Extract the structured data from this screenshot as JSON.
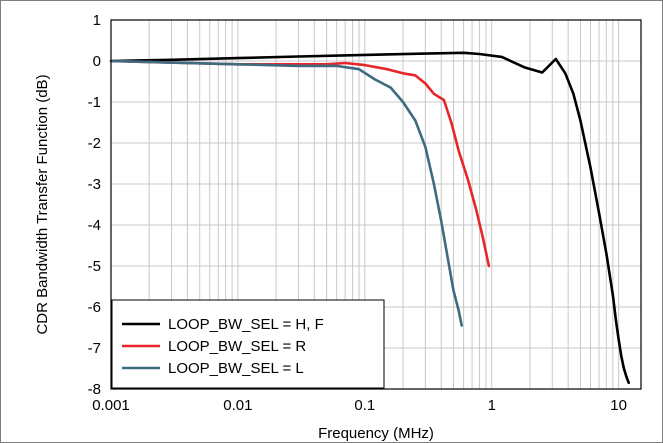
{
  "chart_data": {
    "type": "line",
    "title": "",
    "xlabel": "Frequency (MHz)",
    "ylabel": "CDR Bandwidth Transfer Function (dB)",
    "x_scale": "log",
    "xlim": [
      0.001,
      15
    ],
    "ylim": [
      -8,
      1
    ],
    "x_ticks": [
      0.001,
      0.01,
      0.1,
      1,
      10
    ],
    "x_tick_labels": [
      "0.001",
      "0.01",
      "0.1",
      "1",
      "10"
    ],
    "y_ticks": [
      1,
      0,
      -1,
      -2,
      -3,
      -4,
      -5,
      -6,
      -7,
      -8
    ],
    "y_tick_labels": [
      "1",
      "0",
      "-1",
      "-2",
      "-3",
      "-4",
      "-5",
      "-6",
      "-7",
      "-8"
    ],
    "grid": true,
    "legend_position": "bottom-left",
    "series": [
      {
        "name": "LOOP_BW_SEL = H, F",
        "color": "#000000",
        "x": [
          0.001,
          0.003,
          0.01,
          0.03,
          0.1,
          0.3,
          0.6,
          0.8,
          1.2,
          1.8,
          2.5,
          3.2,
          3.8,
          4.4,
          5.0,
          6.0,
          7.0,
          8.0,
          9.0,
          9.5,
          10.0,
          10.5,
          11.0,
          11.5,
          12.0
        ],
        "y": [
          0.0,
          0.03,
          0.07,
          0.11,
          0.15,
          0.18,
          0.2,
          0.17,
          0.1,
          -0.15,
          -0.28,
          0.05,
          -0.3,
          -0.8,
          -1.45,
          -2.6,
          -3.7,
          -4.7,
          -5.7,
          -6.3,
          -6.8,
          -7.2,
          -7.5,
          -7.7,
          -7.85
        ]
      },
      {
        "name": "LOOP_BW_SEL = R",
        "color": "#e8252a",
        "x": [
          0.001,
          0.01,
          0.05,
          0.07,
          0.1,
          0.15,
          0.2,
          0.25,
          0.3,
          0.35,
          0.42,
          0.48,
          0.55,
          0.65,
          0.75,
          0.85,
          0.95
        ],
        "y": [
          0.0,
          -0.08,
          -0.08,
          -0.05,
          -0.1,
          -0.2,
          -0.3,
          -0.35,
          -0.55,
          -0.8,
          -0.95,
          -1.5,
          -2.2,
          -2.9,
          -3.6,
          -4.3,
          -5.0
        ]
      },
      {
        "name": "LOOP_BW_SEL = L",
        "color": "#3e6b7f",
        "x": [
          0.001,
          0.01,
          0.03,
          0.06,
          0.09,
          0.12,
          0.16,
          0.2,
          0.25,
          0.3,
          0.35,
          0.4,
          0.45,
          0.5,
          0.55,
          0.58
        ],
        "y": [
          0.0,
          -0.08,
          -0.12,
          -0.12,
          -0.2,
          -0.45,
          -0.65,
          -1.0,
          -1.45,
          -2.1,
          -3.0,
          -3.9,
          -4.8,
          -5.6,
          -6.1,
          -6.45
        ]
      }
    ]
  }
}
